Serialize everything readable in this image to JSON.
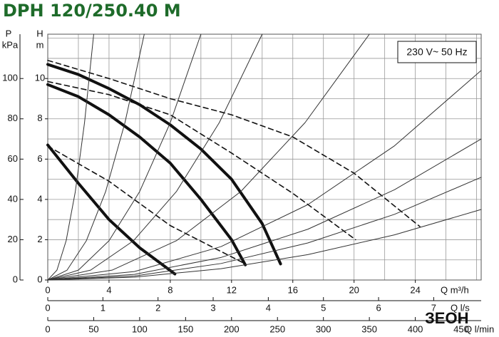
{
  "chart_data": {
    "type": "line",
    "title": "DPH 120/250.40 M",
    "annotation": "230 V~ 50 Hz",
    "logo": "ЗЕОН",
    "ylabel": [
      "H",
      "m"
    ],
    "y2label": [
      "P",
      "kPa"
    ],
    "xlabel": "Q m³/h",
    "x2label": "Q l/s",
    "x3label": "Q l/min",
    "xlim": [
      0,
      28.3
    ],
    "xticks": [
      0,
      4,
      8,
      12,
      16,
      20,
      24
    ],
    "xgrid": [
      0,
      2,
      4,
      6,
      8,
      10,
      12,
      14,
      16,
      18,
      20,
      22,
      24,
      26,
      28
    ],
    "ylim": [
      0,
      12.2
    ],
    "yticks": [
      0,
      2,
      4,
      6,
      8,
      10
    ],
    "ygrid": [
      0,
      1,
      2,
      3,
      4,
      5,
      6,
      7,
      8,
      9,
      10,
      11,
      12
    ],
    "y2lim": [
      0,
      122
    ],
    "y2ticks": [
      0,
      20,
      40,
      60,
      80,
      100
    ],
    "x2lim": [
      0,
      7.861
    ],
    "x2ticks": [
      0,
      1,
      2,
      3,
      4,
      5,
      6,
      7
    ],
    "x3lim": [
      0,
      471.7
    ],
    "x3ticks": [
      0,
      50,
      100,
      150,
      200,
      250,
      300,
      350,
      400,
      450
    ],
    "grid": true,
    "series": [
      {
        "style": "solid",
        "color": "#111111",
        "x": [
          0,
          2,
          4,
          6,
          8,
          10,
          12,
          14,
          15.2
        ],
        "values": [
          10.7,
          10.2,
          9.5,
          8.7,
          7.7,
          6.5,
          5.0,
          2.8,
          0.8
        ]
      },
      {
        "style": "solid",
        "color": "#111111",
        "x": [
          0,
          2,
          4,
          6,
          8,
          10,
          12,
          12.9
        ],
        "values": [
          9.7,
          9.1,
          8.2,
          7.1,
          5.8,
          4.0,
          2.0,
          0.75
        ]
      },
      {
        "style": "solid",
        "color": "#111111",
        "x": [
          0,
          2,
          4,
          6,
          8.3
        ],
        "values": [
          6.7,
          4.8,
          3.0,
          1.6,
          0.3
        ]
      },
      {
        "style": "dashed",
        "color": "#111111",
        "x": [
          0,
          4,
          8,
          12,
          16,
          20,
          24.3
        ],
        "values": [
          10.9,
          10.0,
          9.0,
          8.2,
          7.1,
          5.3,
          2.65
        ]
      },
      {
        "style": "dashed",
        "color": "#111111",
        "x": [
          0,
          4,
          8,
          12,
          16,
          20.1
        ],
        "values": [
          9.85,
          9.2,
          8.2,
          6.3,
          4.3,
          2.0
        ]
      },
      {
        "style": "dashed",
        "color": "#111111",
        "x": [
          0,
          4,
          8,
          12.9
        ],
        "values": [
          6.65,
          4.9,
          2.7,
          0.8
        ]
      },
      {
        "style": "thin",
        "color": "#333333",
        "x": [
          0,
          0.6,
          1.2,
          1.8,
          2.4,
          3
        ],
        "values": [
          0,
          0.49,
          1.95,
          4.39,
          7.81,
          12.2
        ]
      },
      {
        "style": "thin",
        "color": "#333333",
        "x": [
          0,
          1.26,
          2.52,
          3.78,
          5.04,
          6.3
        ],
        "values": [
          0,
          0.49,
          1.95,
          4.39,
          7.81,
          12.2
        ]
      },
      {
        "style": "thin",
        "color": "#333333",
        "x": [
          0,
          2,
          4,
          6,
          8,
          10
        ],
        "values": [
          0,
          0.49,
          1.95,
          4.39,
          7.81,
          12.2
        ]
      },
      {
        "style": "thin",
        "color": "#333333",
        "x": [
          0,
          2.8,
          5.6,
          8.4,
          11.2,
          14
        ],
        "values": [
          0,
          0.49,
          1.95,
          4.39,
          7.81,
          12.2
        ]
      },
      {
        "style": "thin",
        "color": "#333333",
        "x": [
          0,
          4.2,
          8.4,
          12.6,
          16.8,
          21
        ],
        "values": [
          0,
          0.49,
          1.95,
          4.39,
          7.81,
          12.2
        ]
      },
      {
        "style": "thin",
        "color": "#333333",
        "x": [
          0,
          5.66,
          11.32,
          16.98,
          22.64,
          28.3
        ],
        "values": [
          0,
          0.42,
          1.66,
          3.74,
          6.66,
          10.4
        ]
      },
      {
        "style": "thin",
        "color": "#333333",
        "x": [
          0,
          5.66,
          11.32,
          16.98,
          22.64,
          28.3
        ],
        "values": [
          0,
          0.28,
          1.12,
          2.52,
          4.48,
          7.0
        ]
      },
      {
        "style": "thin",
        "color": "#333333",
        "x": [
          0,
          5.66,
          11.32,
          16.98,
          22.64,
          28.3
        ],
        "values": [
          0,
          0.2,
          0.82,
          1.84,
          3.26,
          5.1
        ]
      },
      {
        "style": "thin",
        "color": "#333333",
        "x": [
          0,
          5.66,
          11.32,
          16.98,
          22.64,
          28.3
        ],
        "values": [
          0,
          0.14,
          0.56,
          1.26,
          2.24,
          3.5
        ]
      }
    ]
  }
}
